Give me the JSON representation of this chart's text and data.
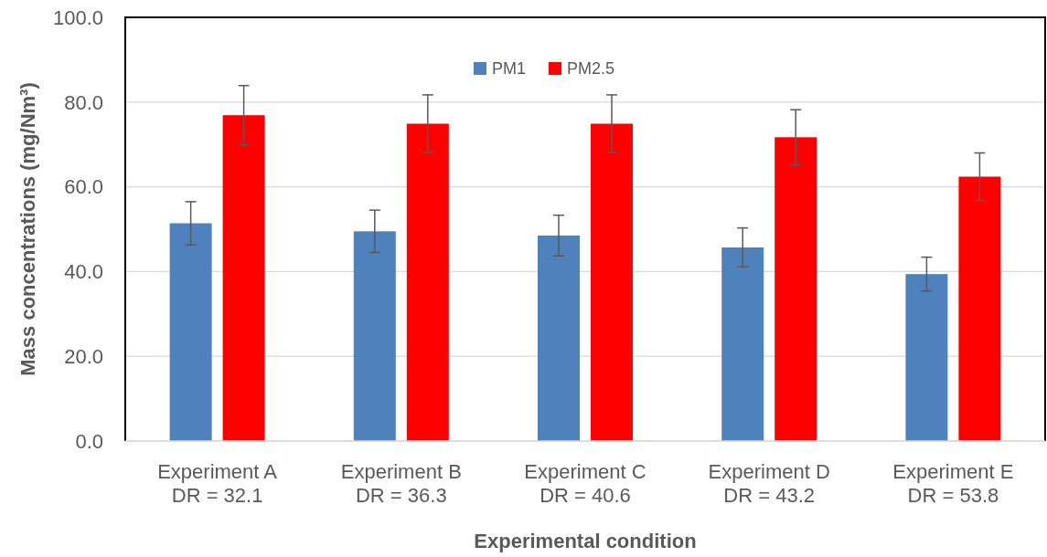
{
  "chart_data": {
    "type": "bar",
    "xlabel": "Experimental condition",
    "ylabel": "Mass concentrations (mg/Nm³)",
    "categories": [
      "Experiment A\nDR = 32.1",
      "Experiment B\nDR = 36.3",
      "Experiment C\nDR = 40.6",
      "Experiment D\nDR = 43.2",
      "Experiment E\nDR = 53.8"
    ],
    "series": [
      {
        "name": "PM1",
        "color": "#4f81bd",
        "values": [
          51.4,
          49.5,
          48.5,
          45.7,
          39.4
        ],
        "errors": [
          5.1,
          5.0,
          4.8,
          4.6,
          4.0
        ]
      },
      {
        "name": "PM2.5",
        "color": "#ff0000",
        "values": [
          76.9,
          74.9,
          74.9,
          71.7,
          62.4
        ],
        "errors": [
          7.0,
          6.8,
          6.8,
          6.5,
          5.6
        ]
      }
    ],
    "ylim": [
      0,
      100
    ],
    "yticks": [
      {
        "value": 0,
        "label": "0.0"
      },
      {
        "value": 20,
        "label": "20.0"
      },
      {
        "value": 40,
        "label": "40.0"
      },
      {
        "value": 60,
        "label": "60.0"
      },
      {
        "value": 80,
        "label": "80.0"
      },
      {
        "value": 100,
        "label": "100.0"
      }
    ],
    "grid": "y",
    "legend": "top"
  }
}
